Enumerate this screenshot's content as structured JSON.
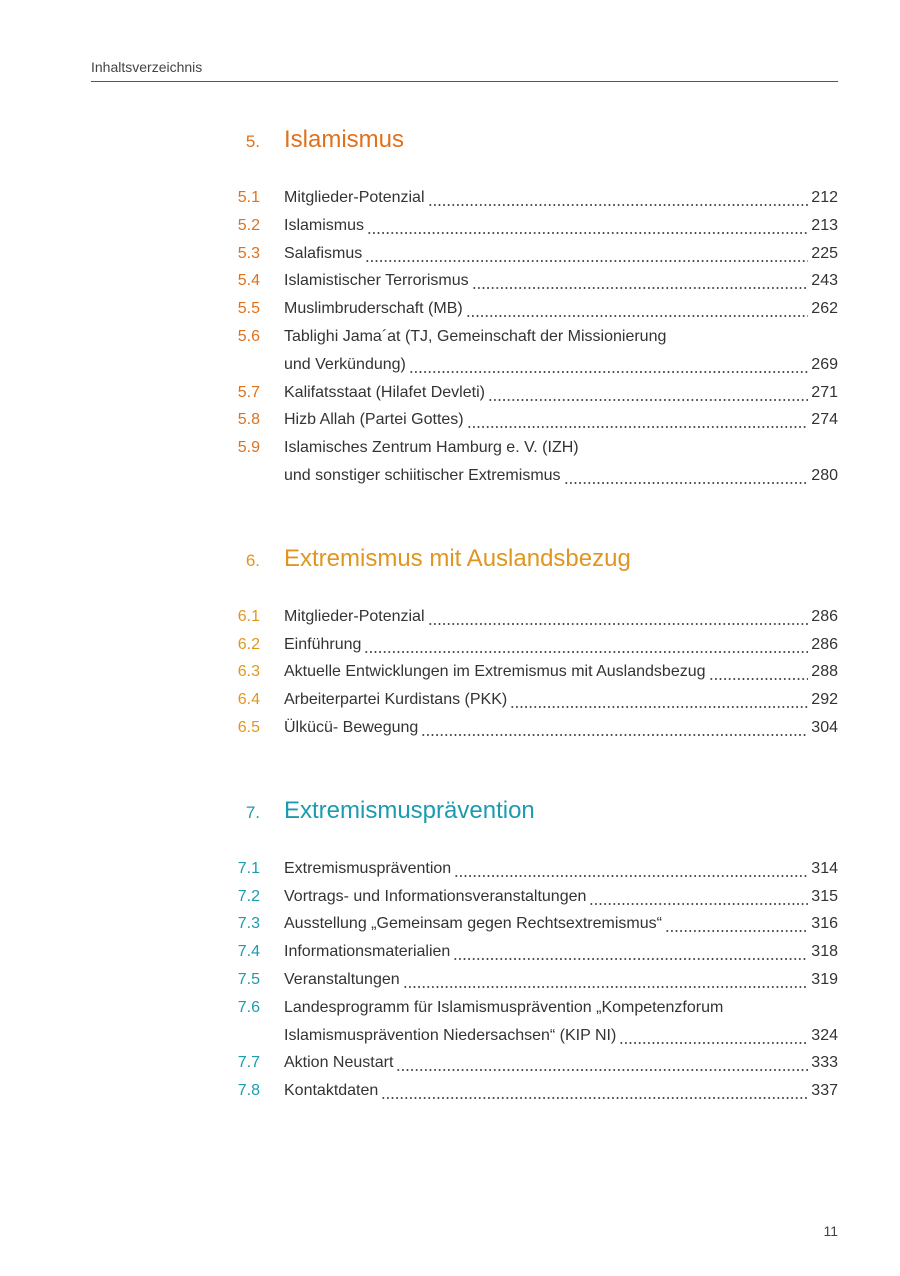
{
  "header": {
    "title": "Inhaltsverzeichnis"
  },
  "sections": [
    {
      "number": "5.",
      "title": "Islamismus",
      "color": "#e0711c",
      "entries": [
        {
          "number": "5.1",
          "lines": [
            "Mitglieder-Potenzial"
          ],
          "page": "212"
        },
        {
          "number": "5.2",
          "lines": [
            "Islamismus"
          ],
          "page": "213"
        },
        {
          "number": "5.3",
          "lines": [
            "Salafismus"
          ],
          "page": "225"
        },
        {
          "number": "5.4",
          "lines": [
            "Islamistischer Terrorismus"
          ],
          "page": "243"
        },
        {
          "number": "5.5",
          "lines": [
            "Muslimbruderschaft (MB)"
          ],
          "page": "262"
        },
        {
          "number": "5.6",
          "lines": [
            "Tablighi Jama´at (TJ, Gemeinschaft der Missionierung",
            "und Verkündung)"
          ],
          "page": "269"
        },
        {
          "number": "5.7",
          "lines": [
            "Kalifatsstaat (Hilafet Devleti)"
          ],
          "page": "271"
        },
        {
          "number": "5.8",
          "lines": [
            "Hizb Allah (Partei Gottes)"
          ],
          "page": "274"
        },
        {
          "number": "5.9",
          "lines": [
            "Islamisches Zentrum Hamburg e. V. (IZH)",
            "und sonstiger schiitischer Extremismus"
          ],
          "page": "280"
        }
      ]
    },
    {
      "number": "6.",
      "title": "Extremismus mit Auslandsbezug",
      "color": "#e0961e",
      "entries": [
        {
          "number": "6.1",
          "lines": [
            "Mitglieder-Potenzial"
          ],
          "page": "286"
        },
        {
          "number": "6.2",
          "lines": [
            "Einführung"
          ],
          "page": "286"
        },
        {
          "number": "6.3",
          "lines": [
            "Aktuelle Entwicklungen im Extremismus mit Auslandsbezug"
          ],
          "page": "288"
        },
        {
          "number": "6.4",
          "lines": [
            "Arbeiterpartei Kurdistans (PKK)"
          ],
          "page": "292"
        },
        {
          "number": "6.5",
          "lines": [
            "Ülkücü- Bewegung"
          ],
          "page": "304"
        }
      ]
    },
    {
      "number": "7.",
      "title": "Extremismusprävention",
      "color": "#1c9bb0",
      "entries": [
        {
          "number": "7.1",
          "lines": [
            "Extremismusprävention"
          ],
          "page": "314"
        },
        {
          "number": "7.2",
          "lines": [
            "Vortrags- und Informationsveranstaltungen"
          ],
          "page": "315"
        },
        {
          "number": "7.3",
          "lines": [
            "Ausstellung „Gemeinsam gegen Rechtsextremismus“"
          ],
          "page": "316"
        },
        {
          "number": "7.4",
          "lines": [
            "Informationsmaterialien"
          ],
          "page": "318"
        },
        {
          "number": "7.5",
          "lines": [
            "Veranstaltungen"
          ],
          "page": "319"
        },
        {
          "number": "7.6",
          "lines": [
            "Landesprogramm für Islamismusprävention „Kompetenzforum",
            "Islamismusprävention Niedersachsen“ (KIP NI)"
          ],
          "page": "324"
        },
        {
          "number": "7.7",
          "lines": [
            "Aktion Neustart"
          ],
          "page": "333"
        },
        {
          "number": "7.8",
          "lines": [
            "Kontaktdaten"
          ],
          "page": "337"
        }
      ]
    }
  ],
  "footer": {
    "page_number": "11"
  }
}
